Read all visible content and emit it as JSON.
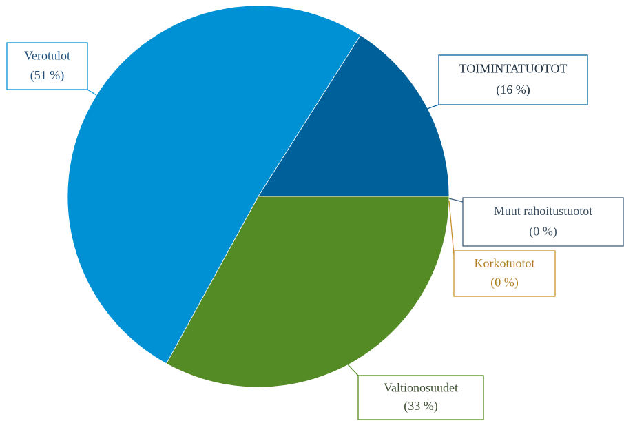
{
  "chart_data": {
    "type": "pie",
    "categories": [
      "Muut rahoitustuotot",
      "Korkotuotot",
      "Valtionosuudet",
      "Verotulot",
      "TOIMINTATUOTOT"
    ],
    "values": [
      0,
      0,
      33,
      51,
      16
    ],
    "value_labels": [
      "(0 %)",
      "(0 %)",
      "(33 %)",
      "(51 %)",
      "(16 %)"
    ],
    "colors": [
      "#3d5f80",
      "#c8912c",
      "#548b24",
      "#0091d5",
      "#00609a"
    ]
  }
}
